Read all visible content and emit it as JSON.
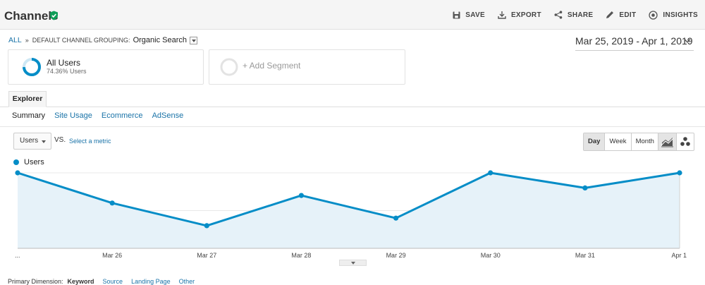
{
  "header": {
    "title": "Channels",
    "actions": [
      {
        "label": "SAVE",
        "icon": "save-icon"
      },
      {
        "label": "EXPORT",
        "icon": "export-icon"
      },
      {
        "label": "SHARE",
        "icon": "share-icon"
      },
      {
        "label": "EDIT",
        "icon": "edit-icon"
      },
      {
        "label": "INSIGHTS",
        "icon": "insights-icon"
      }
    ]
  },
  "breadcrumb": {
    "all": "ALL",
    "separator": "»",
    "grouping": "DEFAULT CHANNEL GROUPING:",
    "value": "Organic Search"
  },
  "date_range": "Mar 25, 2019 - Apr 1, 2019",
  "segments": [
    {
      "name": "All Users",
      "pct": "74.36% Users"
    },
    {
      "add_label": "+ Add Segment"
    }
  ],
  "tabs": {
    "main": "Explorer",
    "sub": [
      "Summary",
      "Site Usage",
      "Ecommerce",
      "AdSense"
    ]
  },
  "controls": {
    "metric": "Users",
    "vs": "VS.",
    "select_metric": "Select a metric",
    "periods": [
      "Day",
      "Week",
      "Month"
    ]
  },
  "primary_dimension": {
    "label": "Primary Dimension:",
    "current": "Keyword",
    "links": [
      "Source",
      "Landing Page",
      "Other"
    ]
  },
  "colors": {
    "accent": "#058dc7",
    "link": "#1a73a8",
    "success": "#0f9d58"
  },
  "chart_data": {
    "type": "area",
    "legend": "Users",
    "x": [
      "...",
      "Mar 26",
      "Mar 27",
      "Mar 28",
      "Mar 29",
      "Mar 30",
      "Mar 31",
      "Apr 1"
    ],
    "series": [
      {
        "name": "Users",
        "values": [
          10,
          6,
          3,
          7,
          4,
          10,
          8,
          10
        ]
      }
    ],
    "yticks": [
      5,
      10
    ],
    "ylim": [
      0,
      10
    ],
    "grid": true
  }
}
